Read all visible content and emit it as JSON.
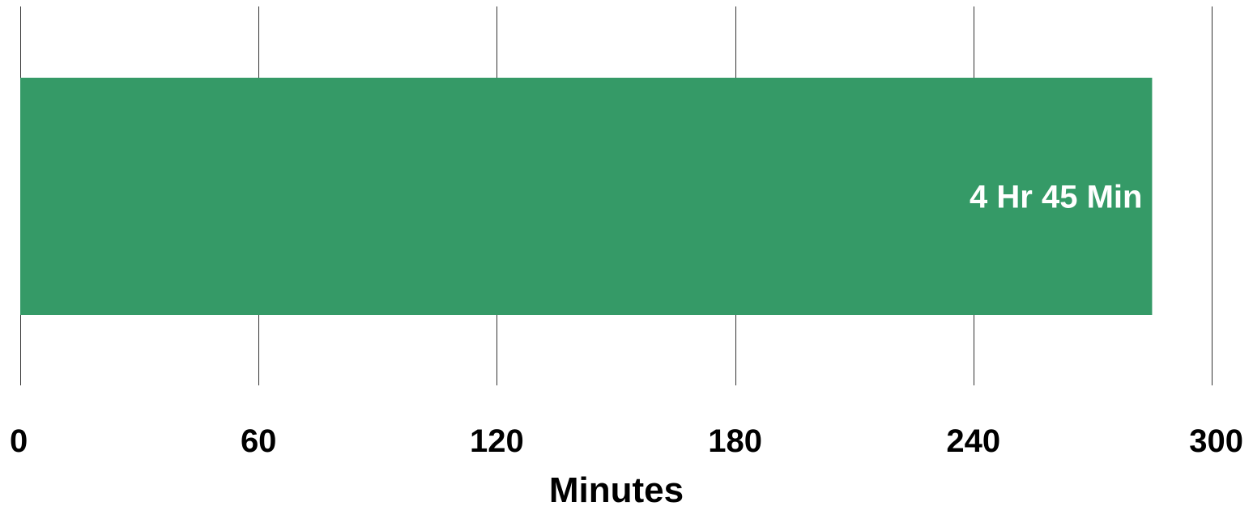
{
  "chart_data": {
    "type": "bar",
    "orientation": "horizontal",
    "categories": [
      ""
    ],
    "values": [
      285
    ],
    "data_labels": [
      "4 Hr 45 Min"
    ],
    "xlabel": "Minutes",
    "ylabel": "",
    "xlim": [
      0,
      300
    ],
    "xticks": [
      0,
      60,
      120,
      180,
      240,
      300
    ],
    "grid": "vertical",
    "legend": "none",
    "colors": {
      "bar": "#359a67",
      "bar_label": "#ffffff",
      "gridline": "#333333",
      "text": "#000000"
    }
  }
}
